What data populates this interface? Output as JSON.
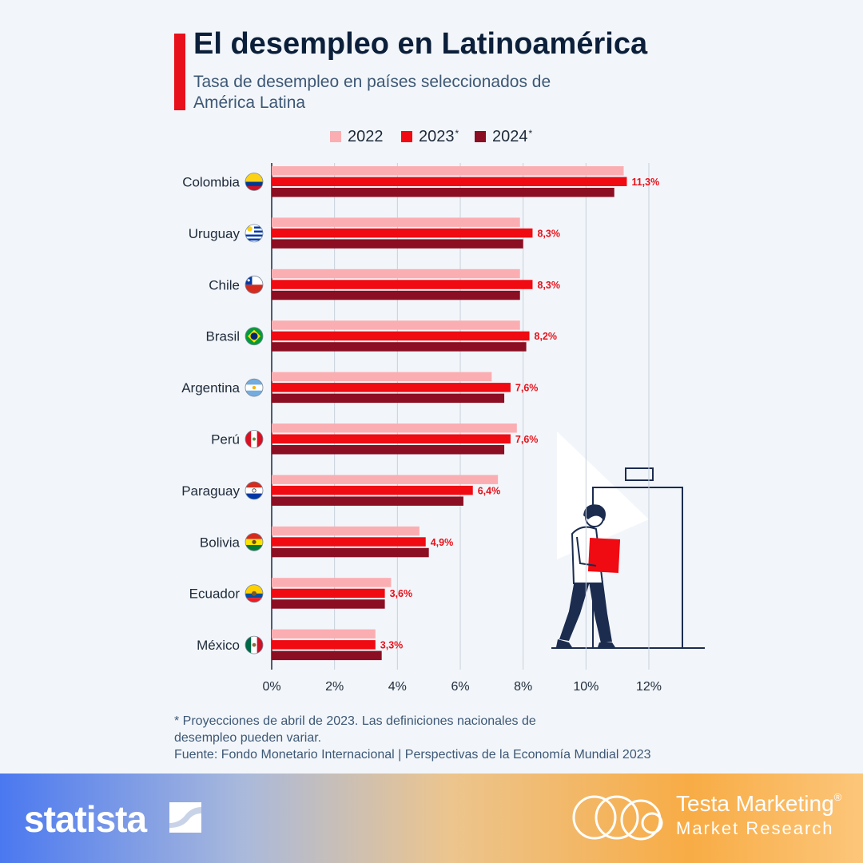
{
  "header": {
    "title": "El desempleo en Latinoamérica",
    "subtitle": "Tasa de desempleo en países seleccionados de América Latina"
  },
  "legend": [
    {
      "label": "2022",
      "mark": "",
      "color": "#fbaeb2"
    },
    {
      "label": "2023",
      "mark": "*",
      "color": "#f00a12"
    },
    {
      "label": "2024",
      "mark": "*",
      "color": "#8b0e22"
    }
  ],
  "chart_data": {
    "type": "bar",
    "orientation": "horizontal",
    "categories": [
      "Colombia",
      "Uruguay",
      "Chile",
      "Brasil",
      "Argentina",
      "Perú",
      "Paraguay",
      "Bolivia",
      "Ecuador",
      "México"
    ],
    "series": [
      {
        "name": "2022",
        "values": [
          11.2,
          7.9,
          7.9,
          7.9,
          7.0,
          7.8,
          7.2,
          4.7,
          3.8,
          3.3
        ]
      },
      {
        "name": "2023*",
        "values": [
          11.3,
          8.3,
          8.3,
          8.2,
          7.6,
          7.6,
          6.4,
          4.9,
          3.6,
          3.3
        ]
      },
      {
        "name": "2024*",
        "values": [
          10.9,
          8.0,
          7.9,
          8.1,
          7.4,
          7.4,
          6.1,
          5.0,
          3.6,
          3.5
        ]
      }
    ],
    "data_labels": [
      "11,3%",
      "8,3%",
      "8,3%",
      "8,2%",
      "7,6%",
      "7,6%",
      "6,4%",
      "4,9%",
      "3,6%",
      "3,3%"
    ],
    "x_ticks": [
      "0%",
      "2%",
      "4%",
      "6%",
      "8%",
      "10%",
      "12%"
    ],
    "xlim": [
      0,
      12
    ],
    "grid": true,
    "legend_position": "top",
    "colors": {
      "2022": "#fbaeb2",
      "2023": "#f00a12",
      "2024": "#8b0e22"
    }
  },
  "notes": {
    "footnote": "* Proyecciones de abril de 2023. Las definiciones nacionales de desempleo pueden variar.",
    "source": "Fuente: Fondo Monetario Internacional | Perspectivas de la Economía Mundial 2023"
  },
  "footer": {
    "statista_logo": "statista",
    "partner_name": "Testa Marketing",
    "partner_reg": "®",
    "partner_sub": "Market Research"
  },
  "icons": {
    "flags": [
      "colombia-flag-icon",
      "uruguay-flag-icon",
      "chile-flag-icon",
      "brazil-flag-icon",
      "argentina-flag-icon",
      "peru-flag-icon",
      "paraguay-flag-icon",
      "bolivia-flag-icon",
      "ecuador-flag-icon",
      "mexico-flag-icon"
    ],
    "illustration": "person-leaving-office-illustration"
  }
}
